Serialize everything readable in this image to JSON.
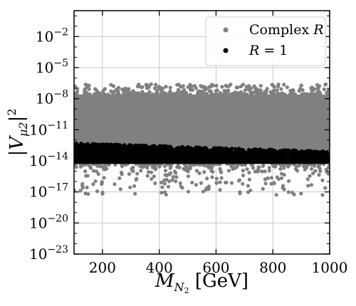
{
  "chart_data": {
    "type": "scatter",
    "x": {
      "label_main": "M",
      "label_sub": "N",
      "label_subsub": "2",
      "label_unit": " [GeV]",
      "lim": [
        100,
        1000
      ],
      "ticks": [
        200,
        400,
        600,
        800,
        1000
      ],
      "tick_labels": [
        "200",
        "400",
        "600",
        "800",
        "1000"
      ]
    },
    "y": {
      "label_pre": "|V",
      "label_sub": "μ2",
      "label_post": "|",
      "label_sup": "2",
      "scale": "log",
      "lim_exp": [
        -23,
        0.5
      ],
      "tick_exps": [
        -23,
        -20,
        -17,
        -14,
        -11,
        -8,
        -5,
        -2
      ],
      "tick_labels": [
        "10",
        "10",
        "10",
        "10",
        "10",
        "10",
        "10",
        "10"
      ],
      "tick_sups": [
        "−23",
        "−20",
        "−17",
        "−14",
        "−11",
        "−8",
        "−5",
        "−2"
      ]
    },
    "grid": true,
    "legend_position": "top-right",
    "series": [
      {
        "name_prefix": "Complex ",
        "name_italic": "R",
        "color": "#808080",
        "band_upper_log10": -7.6,
        "band_lower_log10": -14.3,
        "outliers_upper_log10_max": -6.6,
        "outliers_lower_log10_min": -17.3
      },
      {
        "name_prefix": "",
        "name_italic": "R",
        "name_suffix": " = 1",
        "color": "#000000",
        "band_upper_log10_at_xmin": -12.6,
        "band_upper_log10_at_xmax": -13.4,
        "band_lower_log10": -14.3
      }
    ]
  }
}
